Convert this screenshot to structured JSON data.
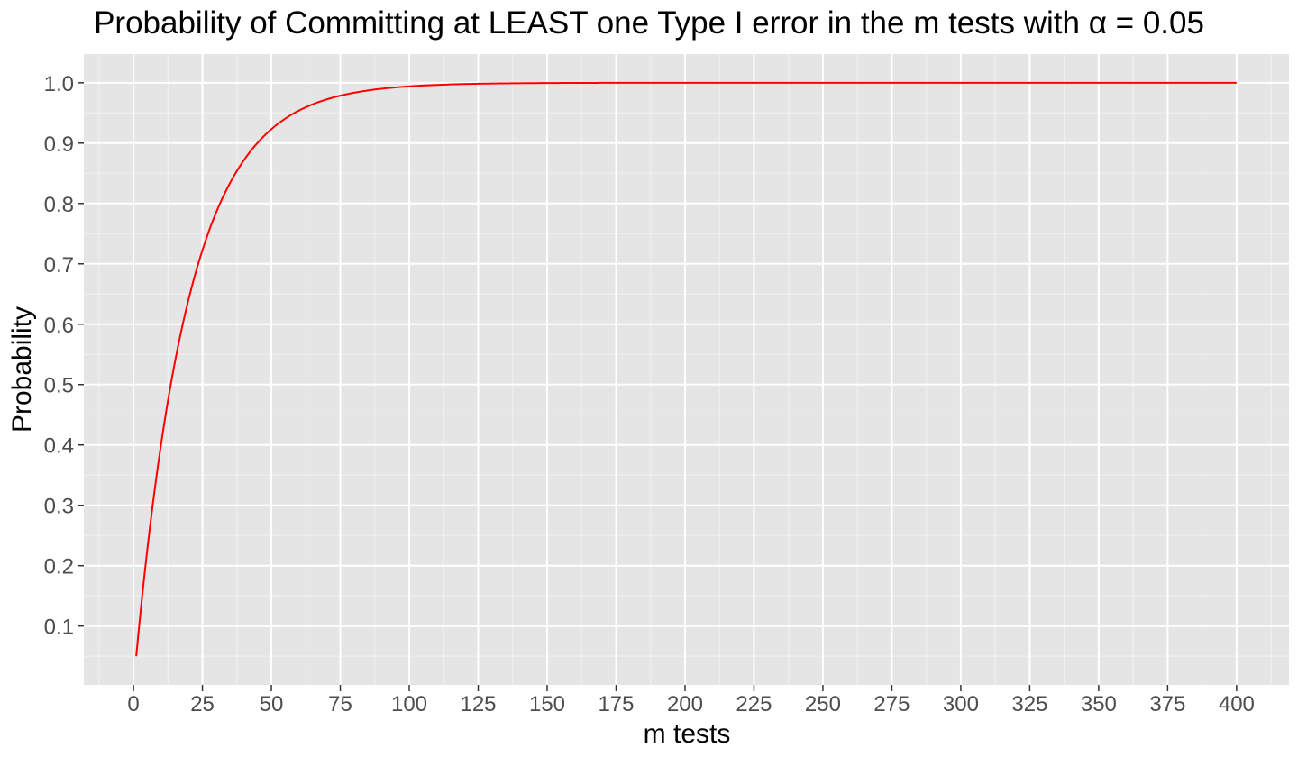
{
  "chart_data": {
    "type": "line",
    "title": "Probability of Committing at LEAST one Type I error in the m tests with α = 0.05",
    "xlabel": "m tests",
    "ylabel": "Probability",
    "alpha": 0.05,
    "x_range": [
      1,
      400
    ],
    "xlim": [
      -18,
      419
    ],
    "ylim": [
      0.0025,
      1.0475
    ],
    "x_ticks": [
      0,
      25,
      50,
      75,
      100,
      125,
      150,
      175,
      200,
      225,
      250,
      275,
      300,
      325,
      350,
      375,
      400
    ],
    "y_ticks": [
      0.1,
      0.2,
      0.3,
      0.4,
      0.5,
      0.6,
      0.7,
      0.8,
      0.9,
      1.0
    ],
    "y_tick_labels": [
      "0.1",
      "0.2",
      "0.3",
      "0.4",
      "0.5",
      "0.6",
      "0.7",
      "0.8",
      "0.9",
      "1.0"
    ],
    "series": [
      {
        "color": "#ff0000",
        "x": [
          1,
          5,
          10,
          15,
          20,
          25,
          30,
          35,
          40,
          45,
          50,
          60,
          70,
          80,
          90,
          100,
          125,
          150,
          200,
          250,
          300,
          350,
          400
        ],
        "y": [
          0.05,
          0.226,
          0.401,
          0.537,
          0.642,
          0.723,
          0.785,
          0.834,
          0.871,
          0.901,
          0.923,
          0.954,
          0.972,
          0.983,
          0.99,
          0.994,
          0.998,
          1.0,
          1.0,
          1.0,
          1.0,
          1.0,
          1.0
        ]
      }
    ],
    "panel_background": "#e5e5e5",
    "grid": true
  }
}
